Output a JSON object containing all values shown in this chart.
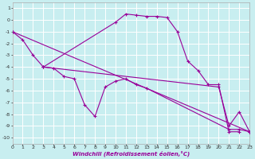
{
  "xlabel": "Windchill (Refroidissement éolien,°C)",
  "bg_color": "#c8eef0",
  "line_color": "#990099",
  "grid_color": "#ffffff",
  "xlim": [
    0,
    23
  ],
  "ylim": [
    -10.5,
    1.5
  ],
  "xticks": [
    0,
    1,
    2,
    3,
    4,
    5,
    6,
    7,
    8,
    9,
    10,
    11,
    12,
    13,
    14,
    15,
    16,
    17,
    18,
    19,
    20,
    21,
    22,
    23
  ],
  "yticks": [
    -10,
    -9,
    -8,
    -7,
    -6,
    -5,
    -4,
    -3,
    -2,
    -1,
    0,
    1
  ],
  "curves": [
    {
      "x": [
        0,
        1,
        2,
        3,
        10,
        11,
        12,
        13,
        14,
        15,
        16,
        17,
        18,
        19,
        20,
        21,
        22
      ],
      "y": [
        -1.0,
        -1.7,
        -3.0,
        -4.0,
        -0.2,
        0.5,
        0.4,
        0.3,
        0.3,
        0.2,
        -1.0,
        -3.5,
        -4.3,
        -5.5,
        -5.5,
        -9.5,
        -9.5
      ]
    },
    {
      "x": [
        3,
        4,
        5,
        6,
        7,
        8,
        9,
        10,
        11,
        12,
        13,
        21,
        22,
        23
      ],
      "y": [
        -4.0,
        -4.1,
        -4.8,
        -5.0,
        -7.2,
        -8.2,
        -5.7,
        -5.2,
        -5.0,
        -5.5,
        -5.8,
        -9.3,
        -9.3,
        -9.5
      ]
    },
    {
      "x": [
        0,
        23
      ],
      "y": [
        -1.0,
        -9.5
      ]
    },
    {
      "x": [
        3,
        20,
        21,
        22,
        23
      ],
      "y": [
        -4.0,
        -5.7,
        -9.0,
        -7.8,
        -9.5
      ]
    }
  ]
}
